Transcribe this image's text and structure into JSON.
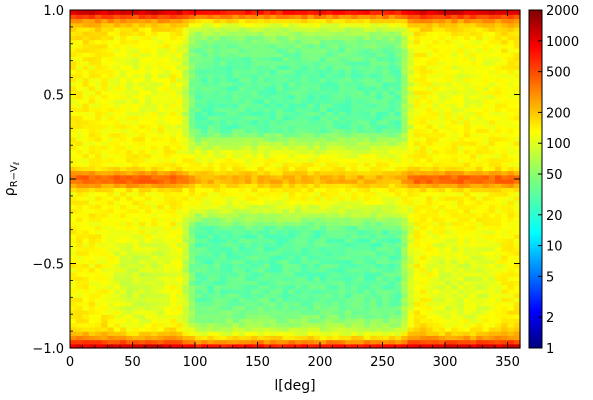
{
  "chart_data": {
    "type": "heatmap",
    "title": "",
    "xlabel": "l[deg]",
    "ylabel": "ρ",
    "ylabel_sub": "R−V",
    "ylabel_sub2": "ℓ",
    "xlim": [
      0,
      360
    ],
    "ylim": [
      -1.0,
      1.0
    ],
    "xticks": [
      0,
      50,
      100,
      150,
      200,
      250,
      300,
      350
    ],
    "xtick_labels": [
      "0",
      "50",
      "100",
      "150",
      "200",
      "250",
      "300",
      "350"
    ],
    "yticks": [
      -1.0,
      -0.5,
      0,
      0.5,
      1.0
    ],
    "ytick_labels": [
      "−1.0",
      "−0.5",
      "0",
      "0.5",
      "1.0"
    ],
    "colorbar": {
      "scale": "log",
      "range": [
        1,
        2000
      ],
      "ticks": [
        1,
        2,
        5,
        10,
        20,
        50,
        100,
        200,
        500,
        1000,
        2000
      ],
      "tick_labels": [
        "1",
        "2",
        "5",
        "10",
        "20",
        "50",
        "100",
        "200",
        "500",
        "1000",
        "2000"
      ],
      "colormap": "jet"
    },
    "description_of_field": {
      "x_bins": 72,
      "y_bins": 80,
      "typical_counts": {
        "edges_y_near_pm1": 1000,
        "ridge_y_0": 200,
        "inner_galaxy_lon_bands": 100,
        "outer_galaxy_center_lon_100_270": 35
      }
    },
    "grid": false,
    "legend": "none"
  }
}
